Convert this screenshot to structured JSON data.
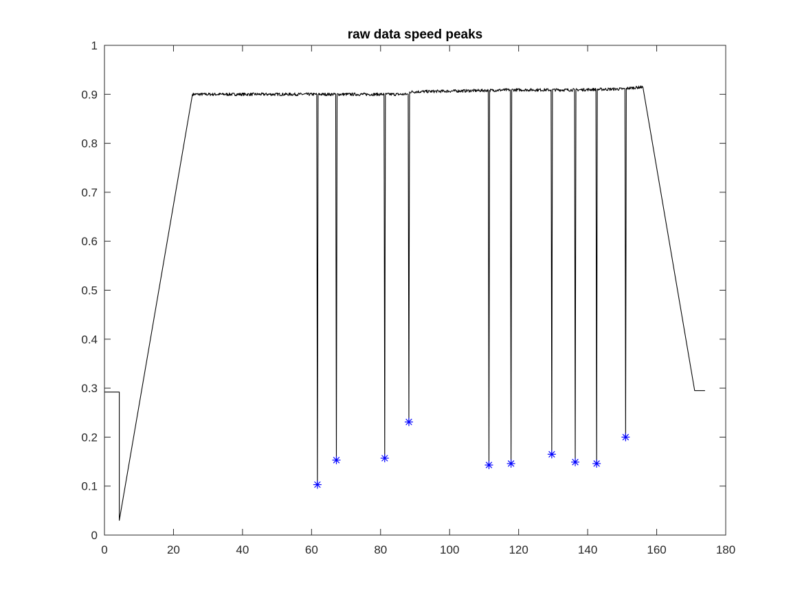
{
  "chart_data": {
    "type": "line",
    "title": "raw data speed peaks",
    "xlabel": "",
    "ylabel": "",
    "xlim": [
      0,
      180
    ],
    "ylim": [
      0,
      1
    ],
    "x_ticks": [
      0,
      20,
      40,
      60,
      80,
      100,
      120,
      140,
      160,
      180
    ],
    "y_ticks": [
      0,
      0.1,
      0.2,
      0.3,
      0.4,
      0.5,
      0.6,
      0.7,
      0.8,
      0.9,
      1
    ],
    "x_tick_labels": [
      "0",
      "20",
      "40",
      "60",
      "80",
      "100",
      "120",
      "140",
      "160",
      "180"
    ],
    "y_tick_labels": [
      "0",
      "0.1",
      "0.2",
      "0.3",
      "0.4",
      "0.5",
      "0.6",
      "0.7",
      "0.8",
      "0.9",
      "1"
    ],
    "grid": false,
    "box": true,
    "series": [
      {
        "style": "line",
        "color": "#000000",
        "noise_amplitude": 0.003,
        "points": [
          [
            0,
            0.292
          ],
          [
            4.3,
            0.292
          ],
          [
            4.3,
            0.03
          ],
          [
            25.5,
            0.9
          ],
          [
            61.5,
            0.9
          ],
          [
            61.7,
            0.103
          ],
          [
            61.9,
            0.9
          ],
          [
            67.0,
            0.9
          ],
          [
            67.2,
            0.153
          ],
          [
            67.4,
            0.9
          ],
          [
            81.0,
            0.9
          ],
          [
            81.2,
            0.157
          ],
          [
            81.4,
            0.9
          ],
          [
            88.0,
            0.9
          ],
          [
            88.2,
            0.231
          ],
          [
            88.4,
            0.905
          ],
          [
            111.2,
            0.908
          ],
          [
            111.4,
            0.143
          ],
          [
            111.6,
            0.908
          ],
          [
            117.6,
            0.909
          ],
          [
            117.8,
            0.146
          ],
          [
            118.0,
            0.909
          ],
          [
            129.4,
            0.909
          ],
          [
            129.6,
            0.165
          ],
          [
            129.8,
            0.909
          ],
          [
            136.2,
            0.909
          ],
          [
            136.4,
            0.149
          ],
          [
            136.6,
            0.909
          ],
          [
            142.4,
            0.91
          ],
          [
            142.6,
            0.146
          ],
          [
            142.8,
            0.91
          ],
          [
            150.8,
            0.911
          ],
          [
            151.0,
            0.2
          ],
          [
            151.2,
            0.912
          ],
          [
            156.0,
            0.915
          ],
          [
            171.0,
            0.295
          ],
          [
            174.0,
            0.295
          ]
        ]
      },
      {
        "style": "markers",
        "marker": "asterisk",
        "color": "#0000ff",
        "x": [
          61.7,
          67.2,
          81.2,
          88.2,
          111.4,
          117.8,
          129.6,
          136.4,
          142.6,
          151.0
        ],
        "y": [
          0.103,
          0.153,
          0.157,
          0.231,
          0.143,
          0.146,
          0.165,
          0.149,
          0.146,
          0.2
        ]
      }
    ]
  }
}
